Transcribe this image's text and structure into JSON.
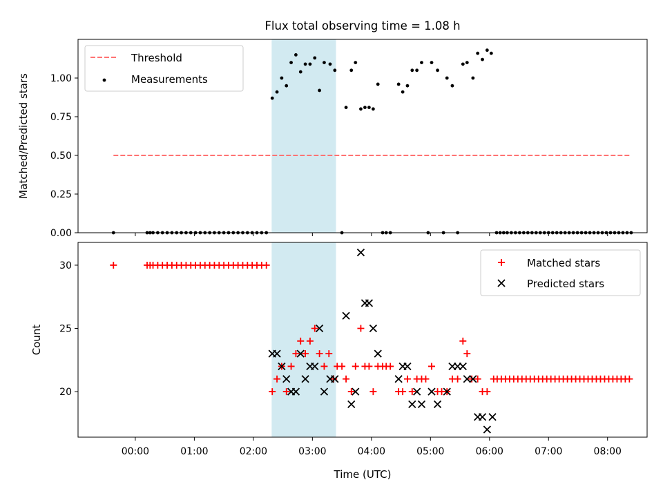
{
  "title": "Flux total observing time = 1.08 h",
  "colors": {
    "threshold": "#ff7373",
    "band": "#add8e6",
    "matched": "#ff0000",
    "predicted": "#000000",
    "measurement": "#000000"
  },
  "chart_data": [
    {
      "type": "scatter",
      "ylabel": "Matched/Predicted stars",
      "xlim": [
        -0.97,
        8.67
      ],
      "ylim": [
        0.0,
        1.25
      ],
      "yticks": [
        "0.00",
        "0.25",
        "0.50",
        "0.75",
        "1.00"
      ],
      "ytick_values": [
        0.0,
        0.25,
        0.5,
        0.75,
        1.0
      ],
      "shaded_band": [
        2.31,
        3.4
      ],
      "threshold": {
        "name": "Threshold",
        "y": 0.5,
        "x_range": [
          -0.37,
          8.4
        ]
      },
      "legend": {
        "position": "top-left",
        "entries": [
          "Threshold",
          "Measurements"
        ]
      },
      "series": [
        {
          "name": "Measurements",
          "points": [
            [
              -0.37,
              0.0
            ],
            [
              0.2,
              0.0
            ],
            [
              0.25,
              0.0
            ],
            [
              0.3,
              0.0
            ],
            [
              0.38,
              0.0
            ],
            [
              0.46,
              0.0
            ],
            [
              0.54,
              0.0
            ],
            [
              0.62,
              0.0
            ],
            [
              0.7,
              0.0
            ],
            [
              0.78,
              0.0
            ],
            [
              0.86,
              0.0
            ],
            [
              0.94,
              0.0
            ],
            [
              1.02,
              0.0
            ],
            [
              1.1,
              0.0
            ],
            [
              1.18,
              0.0
            ],
            [
              1.26,
              0.0
            ],
            [
              1.34,
              0.0
            ],
            [
              1.42,
              0.0
            ],
            [
              1.5,
              0.0
            ],
            [
              1.58,
              0.0
            ],
            [
              1.66,
              0.0
            ],
            [
              1.74,
              0.0
            ],
            [
              1.82,
              0.0
            ],
            [
              1.9,
              0.0
            ],
            [
              1.98,
              0.0
            ],
            [
              2.06,
              0.0
            ],
            [
              2.14,
              0.0
            ],
            [
              2.22,
              0.0
            ],
            [
              2.32,
              0.87
            ],
            [
              2.4,
              0.91
            ],
            [
              2.48,
              1.0
            ],
            [
              2.56,
              0.95
            ],
            [
              2.64,
              1.1
            ],
            [
              2.72,
              1.15
            ],
            [
              2.8,
              1.04
            ],
            [
              2.88,
              1.09
            ],
            [
              2.96,
              1.09
            ],
            [
              3.04,
              1.13
            ],
            [
              3.12,
              0.92
            ],
            [
              3.2,
              1.1
            ],
            [
              3.3,
              1.09
            ],
            [
              3.38,
              1.05
            ],
            [
              3.5,
              0.0
            ],
            [
              3.57,
              0.81
            ],
            [
              3.66,
              1.05
            ],
            [
              3.73,
              1.1
            ],
            [
              3.82,
              0.8
            ],
            [
              3.89,
              0.81
            ],
            [
              3.96,
              0.81
            ],
            [
              4.03,
              0.8
            ],
            [
              4.11,
              0.96
            ],
            [
              4.19,
              0.0
            ],
            [
              4.25,
              0.0
            ],
            [
              4.32,
              0.0
            ],
            [
              4.46,
              0.96
            ],
            [
              4.53,
              0.91
            ],
            [
              4.61,
              0.95
            ],
            [
              4.69,
              1.05
            ],
            [
              4.77,
              1.05
            ],
            [
              4.85,
              1.1
            ],
            [
              4.96,
              0.0
            ],
            [
              5.02,
              1.1
            ],
            [
              5.12,
              1.05
            ],
            [
              5.22,
              0.0
            ],
            [
              5.28,
              1.0
            ],
            [
              5.37,
              0.95
            ],
            [
              5.46,
              0.0
            ],
            [
              5.55,
              1.09
            ],
            [
              5.62,
              1.1
            ],
            [
              5.72,
              1.0
            ],
            [
              5.8,
              1.16
            ],
            [
              5.88,
              1.12
            ],
            [
              5.96,
              1.18
            ],
            [
              6.03,
              1.16
            ],
            [
              6.12,
              0.0
            ],
            [
              6.18,
              0.0
            ],
            [
              6.24,
              0.0
            ],
            [
              6.3,
              0.0
            ],
            [
              6.37,
              0.0
            ],
            [
              6.44,
              0.0
            ],
            [
              6.51,
              0.0
            ],
            [
              6.58,
              0.0
            ],
            [
              6.65,
              0.0
            ],
            [
              6.72,
              0.0
            ],
            [
              6.79,
              0.0
            ],
            [
              6.86,
              0.0
            ],
            [
              6.93,
              0.0
            ],
            [
              7.0,
              0.0
            ],
            [
              7.07,
              0.0
            ],
            [
              7.14,
              0.0
            ],
            [
              7.21,
              0.0
            ],
            [
              7.28,
              0.0
            ],
            [
              7.35,
              0.0
            ],
            [
              7.42,
              0.0
            ],
            [
              7.49,
              0.0
            ],
            [
              7.56,
              0.0
            ],
            [
              7.63,
              0.0
            ],
            [
              7.7,
              0.0
            ],
            [
              7.77,
              0.0
            ],
            [
              7.84,
              0.0
            ],
            [
              7.91,
              0.0
            ],
            [
              7.98,
              0.0
            ],
            [
              8.05,
              0.0
            ],
            [
              8.12,
              0.0
            ],
            [
              8.19,
              0.0
            ],
            [
              8.26,
              0.0
            ],
            [
              8.33,
              0.0
            ],
            [
              8.4,
              0.0
            ]
          ]
        }
      ]
    },
    {
      "type": "scatter",
      "xlabel": "Time (UTC)",
      "ylabel": "Count",
      "xlim": [
        -0.97,
        8.67
      ],
      "ylim": [
        16.4,
        31.8
      ],
      "xticks": [
        "00:00",
        "01:00",
        "02:00",
        "03:00",
        "04:00",
        "05:00",
        "06:00",
        "07:00",
        "08:00"
      ],
      "xtick_values": [
        0,
        1,
        2,
        3,
        4,
        5,
        6,
        7,
        8
      ],
      "yticks": [
        "20",
        "25",
        "30"
      ],
      "ytick_values": [
        20,
        25,
        30
      ],
      "shaded_band": [
        2.31,
        3.4
      ],
      "legend": {
        "position": "top-right",
        "entries": [
          "Matched stars",
          "Predicted stars"
        ]
      },
      "series": [
        {
          "name": "Matched stars",
          "marker": "plus",
          "points": [
            [
              -0.37,
              30
            ],
            [
              0.2,
              30
            ],
            [
              0.25,
              30
            ],
            [
              0.3,
              30
            ],
            [
              0.38,
              30
            ],
            [
              0.46,
              30
            ],
            [
              0.54,
              30
            ],
            [
              0.62,
              30
            ],
            [
              0.7,
              30
            ],
            [
              0.78,
              30
            ],
            [
              0.86,
              30
            ],
            [
              0.94,
              30
            ],
            [
              1.02,
              30
            ],
            [
              1.1,
              30
            ],
            [
              1.18,
              30
            ],
            [
              1.26,
              30
            ],
            [
              1.34,
              30
            ],
            [
              1.42,
              30
            ],
            [
              1.5,
              30
            ],
            [
              1.58,
              30
            ],
            [
              1.66,
              30
            ],
            [
              1.74,
              30
            ],
            [
              1.82,
              30
            ],
            [
              1.9,
              30
            ],
            [
              1.98,
              30
            ],
            [
              2.06,
              30
            ],
            [
              2.14,
              30
            ],
            [
              2.22,
              30
            ],
            [
              2.32,
              20
            ],
            [
              2.4,
              21
            ],
            [
              2.48,
              22
            ],
            [
              2.56,
              20
            ],
            [
              2.64,
              22
            ],
            [
              2.72,
              23
            ],
            [
              2.8,
              24
            ],
            [
              2.88,
              23
            ],
            [
              2.96,
              24
            ],
            [
              3.04,
              25
            ],
            [
              3.12,
              23
            ],
            [
              3.2,
              22
            ],
            [
              3.28,
              23
            ],
            [
              3.36,
              21
            ],
            [
              3.42,
              22
            ],
            [
              3.5,
              22
            ],
            [
              3.57,
              21
            ],
            [
              3.66,
              20
            ],
            [
              3.73,
              22
            ],
            [
              3.82,
              25
            ],
            [
              3.89,
              22
            ],
            [
              3.96,
              22
            ],
            [
              4.03,
              20
            ],
            [
              4.11,
              22
            ],
            [
              4.19,
              22
            ],
            [
              4.25,
              22
            ],
            [
              4.32,
              22
            ],
            [
              4.46,
              20
            ],
            [
              4.53,
              20
            ],
            [
              4.61,
              21
            ],
            [
              4.69,
              20
            ],
            [
              4.77,
              21
            ],
            [
              4.85,
              21
            ],
            [
              4.92,
              21
            ],
            [
              5.02,
              22
            ],
            [
              5.12,
              20
            ],
            [
              5.19,
              20
            ],
            [
              5.28,
              20
            ],
            [
              5.37,
              21
            ],
            [
              5.46,
              21
            ],
            [
              5.55,
              24
            ],
            [
              5.62,
              23
            ],
            [
              5.7,
              21
            ],
            [
              5.8,
              21
            ],
            [
              5.88,
              20
            ],
            [
              5.96,
              20
            ],
            [
              6.07,
              21
            ],
            [
              6.13,
              21
            ],
            [
              6.2,
              21
            ],
            [
              6.27,
              21
            ],
            [
              6.34,
              21
            ],
            [
              6.41,
              21
            ],
            [
              6.48,
              21
            ],
            [
              6.55,
              21
            ],
            [
              6.62,
              21
            ],
            [
              6.69,
              21
            ],
            [
              6.76,
              21
            ],
            [
              6.83,
              21
            ],
            [
              6.9,
              21
            ],
            [
              6.97,
              21
            ],
            [
              7.04,
              21
            ],
            [
              7.11,
              21
            ],
            [
              7.18,
              21
            ],
            [
              7.25,
              21
            ],
            [
              7.32,
              21
            ],
            [
              7.39,
              21
            ],
            [
              7.46,
              21
            ],
            [
              7.53,
              21
            ],
            [
              7.6,
              21
            ],
            [
              7.67,
              21
            ],
            [
              7.74,
              21
            ],
            [
              7.81,
              21
            ],
            [
              7.88,
              21
            ],
            [
              7.95,
              21
            ],
            [
              8.02,
              21
            ],
            [
              8.09,
              21
            ],
            [
              8.16,
              21
            ],
            [
              8.23,
              21
            ],
            [
              8.3,
              21
            ],
            [
              8.37,
              21
            ]
          ]
        },
        {
          "name": "Predicted stars",
          "marker": "x",
          "points": [
            [
              2.32,
              23
            ],
            [
              2.4,
              23
            ],
            [
              2.48,
              22
            ],
            [
              2.56,
              21
            ],
            [
              2.64,
              20
            ],
            [
              2.72,
              20
            ],
            [
              2.8,
              23
            ],
            [
              2.88,
              21
            ],
            [
              2.96,
              22
            ],
            [
              3.04,
              22
            ],
            [
              3.12,
              25
            ],
            [
              3.2,
              20
            ],
            [
              3.3,
              21
            ],
            [
              3.38,
              21
            ],
            [
              3.57,
              26
            ],
            [
              3.66,
              19
            ],
            [
              3.73,
              20
            ],
            [
              3.82,
              31
            ],
            [
              3.89,
              27
            ],
            [
              3.96,
              27
            ],
            [
              4.03,
              25
            ],
            [
              4.11,
              23
            ],
            [
              4.46,
              21
            ],
            [
              4.53,
              22
            ],
            [
              4.61,
              22
            ],
            [
              4.69,
              19
            ],
            [
              4.77,
              20
            ],
            [
              4.85,
              19
            ],
            [
              5.02,
              20
            ],
            [
              5.12,
              19
            ],
            [
              5.28,
              20
            ],
            [
              5.37,
              22
            ],
            [
              5.46,
              22
            ],
            [
              5.55,
              22
            ],
            [
              5.62,
              21
            ],
            [
              5.72,
              21
            ],
            [
              5.8,
              18
            ],
            [
              5.88,
              18
            ],
            [
              5.96,
              17
            ],
            [
              6.05,
              18
            ]
          ]
        }
      ]
    }
  ]
}
